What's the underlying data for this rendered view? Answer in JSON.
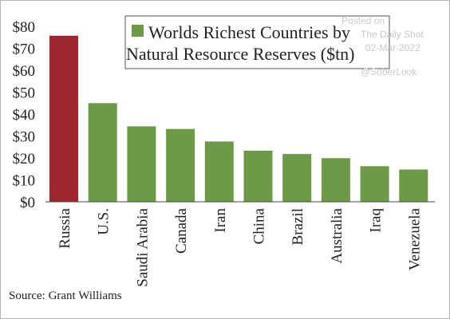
{
  "chart_data": {
    "type": "bar",
    "title": "",
    "xlabel": "",
    "ylabel": "",
    "ylim": [
      0,
      80
    ],
    "yticks": [
      "$0",
      "$10",
      "$20",
      "$30",
      "$40",
      "$50",
      "$60",
      "$70",
      "$80"
    ],
    "categories": [
      "Russia",
      "U.S.",
      "Saudi Arabia",
      "Canada",
      "Iran",
      "China",
      "Brazil",
      "Australia",
      "Iraq",
      "Venezuela"
    ],
    "values": [
      75.7,
      45,
      34.4,
      33.2,
      27.5,
      23.3,
      21.8,
      19.9,
      16.2,
      14.7
    ],
    "colors": {
      "highlight": "#9e2630",
      "default": "#6e9a48"
    },
    "highlight_index": 0,
    "legend": {
      "line1": "Worlds Richest Countries by",
      "line2": "Natural Resource Reserves ($tn)",
      "swatch_color": "#6e9a48",
      "placement": "top-center"
    },
    "source": "Source: Grant Williams",
    "grid": false
  },
  "watermark": {
    "line1": "Posted on",
    "line2": "The Daily Shot",
    "line3": "02-Mar-2022",
    "line4": "@SoberLook"
  }
}
